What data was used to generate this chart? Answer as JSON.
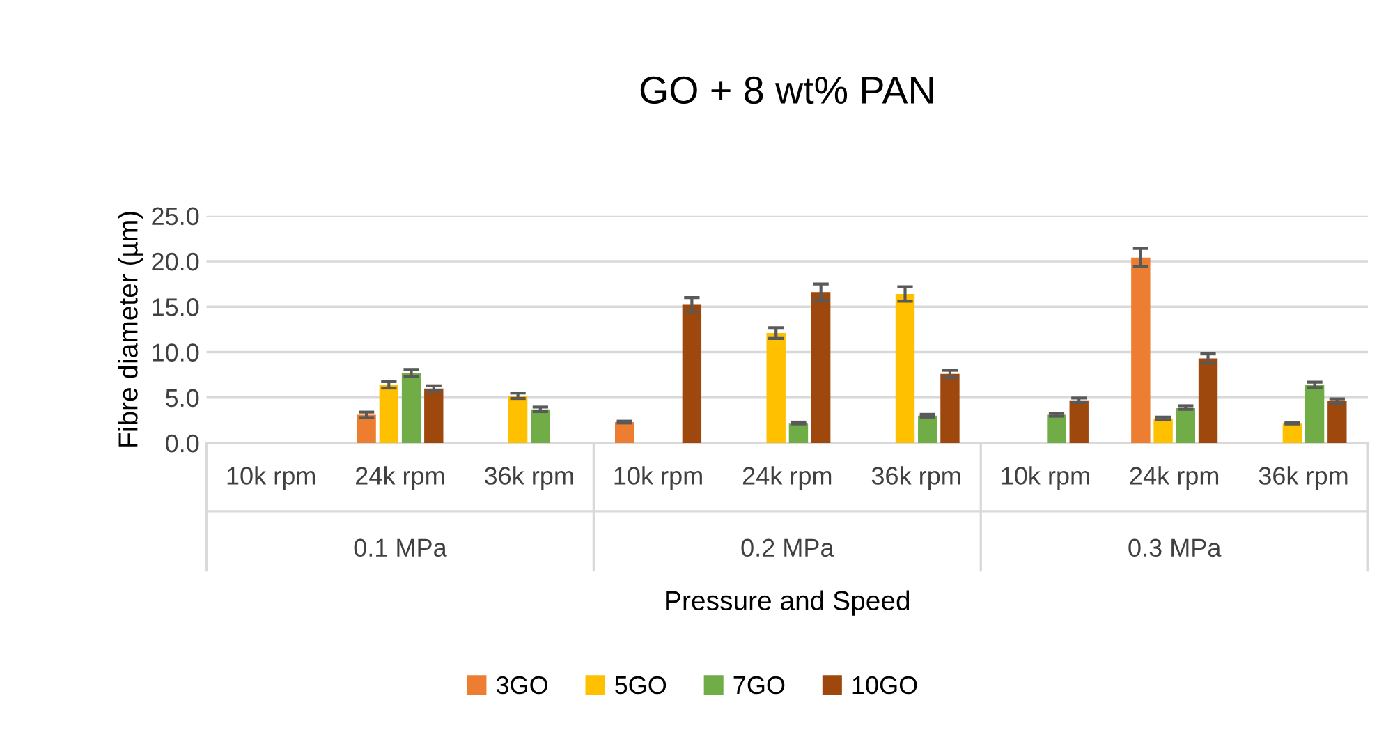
{
  "chart_data": {
    "type": "bar",
    "title": "GO + 8 wt% PAN",
    "xlabel": "Pressure and Speed",
    "ylabel": "Fibre diameter (µm)",
    "categories": [
      "10k rpm",
      "24k rpm",
      "36k rpm",
      "10k rpm",
      "24k rpm",
      "36k rpm",
      "10k rpm",
      "24k rpm",
      "36k rpm"
    ],
    "annotations": [
      "0.1 MPa",
      "0.2 MPa",
      "0.3 MPa"
    ],
    "series": [
      {
        "name": "3GO",
        "color": "#ed7d31",
        "values": [
          null,
          3.1,
          null,
          2.3,
          null,
          null,
          null,
          20.4,
          null
        ],
        "errors": [
          null,
          0.3,
          null,
          0.1,
          null,
          null,
          null,
          1.0,
          null
        ]
      },
      {
        "name": "5GO",
        "color": "#ffc000",
        "values": [
          null,
          6.4,
          5.2,
          null,
          12.1,
          16.4,
          null,
          2.7,
          2.2
        ],
        "errors": [
          null,
          0.35,
          0.3,
          null,
          0.6,
          0.8,
          null,
          0.15,
          0.1
        ]
      },
      {
        "name": "7GO",
        "color": "#70ad47",
        "values": [
          null,
          7.7,
          3.7,
          null,
          2.2,
          3.0,
          3.1,
          3.9,
          6.4
        ],
        "errors": [
          null,
          0.4,
          0.25,
          null,
          0.1,
          0.15,
          0.15,
          0.2,
          0.3
        ]
      },
      {
        "name": "10GO",
        "color": "#9e480e",
        "values": [
          null,
          6.0,
          null,
          15.2,
          16.6,
          7.6,
          4.7,
          9.3,
          4.6
        ],
        "errors": [
          null,
          0.3,
          null,
          0.8,
          0.9,
          0.4,
          0.25,
          0.5,
          0.25
        ]
      }
    ],
    "ylim": [
      0,
      25
    ],
    "yticks": [
      {
        "value": 0,
        "label": "0.0"
      },
      {
        "value": 5,
        "label": "5.0"
      },
      {
        "value": 10,
        "label": "10.0"
      },
      {
        "value": 15,
        "label": "15.0"
      },
      {
        "value": 20,
        "label": "20.0"
      },
      {
        "value": 25,
        "label": "25.0"
      }
    ],
    "grid": "y",
    "legend": "bottom"
  }
}
